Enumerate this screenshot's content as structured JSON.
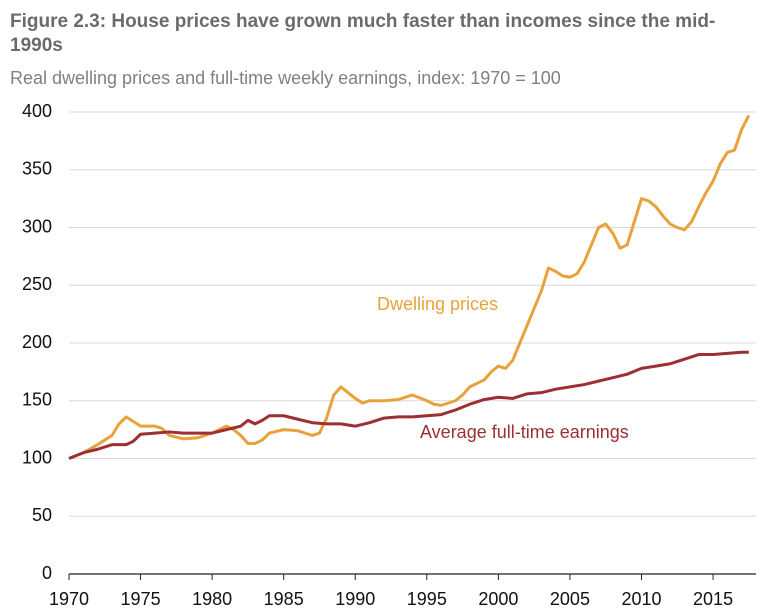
{
  "chart_data": {
    "type": "line",
    "title": "Figure 2.3: House prices have grown much faster than incomes since the mid-1990s",
    "subtitle": "Real dwelling prices and full-time weekly earnings, index: 1970 = 100",
    "xlim": [
      1970,
      2018
    ],
    "xticks": [
      1970,
      1975,
      1980,
      1985,
      1990,
      1995,
      2000,
      2005,
      2010,
      2015
    ],
    "ylim": [
      0,
      400
    ],
    "yticks": [
      0,
      50,
      100,
      150,
      200,
      250,
      300,
      350,
      400
    ],
    "grid": true,
    "series": [
      {
        "name": "Dwelling prices",
        "color": "#e9a23b",
        "x": [
          1970,
          1971,
          1972,
          1973,
          1973.5,
          1974,
          1974.5,
          1975,
          1976,
          1976.5,
          1977,
          1978,
          1979,
          1980,
          1980.5,
          1981,
          1981.5,
          1982,
          1982.5,
          1983,
          1983.5,
          1984,
          1985,
          1986,
          1987,
          1987.5,
          1988,
          1988.5,
          1989,
          1989.5,
          1990,
          1990.5,
          1991,
          1992,
          1993,
          1994,
          1995,
          1995.5,
          1996,
          1997,
          1997.5,
          1998,
          1999,
          1999.5,
          2000,
          2000.5,
          2001,
          2001.5,
          2002,
          2002.5,
          2003,
          2003.5,
          2004,
          2004.5,
          2005,
          2005.5,
          2006,
          2006.5,
          2007,
          2007.5,
          2008,
          2008.5,
          2009,
          2009.5,
          2010,
          2010.5,
          2011,
          2011.5,
          2012,
          2012.5,
          2013,
          2013.5,
          2014,
          2014.5,
          2015,
          2015.5,
          2016,
          2016.5,
          2017,
          2017.5
        ],
        "values": [
          100,
          105,
          112,
          120,
          130,
          136,
          132,
          128,
          128,
          126,
          120,
          117,
          118,
          122,
          125,
          128,
          125,
          120,
          113,
          113,
          116,
          122,
          125,
          124,
          120,
          122,
          135,
          155,
          162,
          157,
          152,
          148,
          150,
          150,
          151,
          155,
          150,
          147,
          146,
          150,
          155,
          162,
          168,
          175,
          180,
          178,
          185,
          200,
          215,
          230,
          245,
          265,
          262,
          258,
          257,
          260,
          270,
          285,
          300,
          303,
          295,
          282,
          285,
          305,
          325,
          323,
          318,
          310,
          303,
          300,
          298,
          305,
          318,
          330,
          340,
          355,
          365,
          367,
          385,
          397
        ]
      },
      {
        "name": "Average full-time earnings",
        "color": "#9c2f31",
        "x": [
          1970,
          1971,
          1972,
          1973,
          1974,
          1974.5,
          1975,
          1976,
          1977,
          1978,
          1979,
          1980,
          1981,
          1982,
          1982.5,
          1983,
          1983.5,
          1984,
          1985,
          1986,
          1987,
          1988,
          1989,
          1990,
          1991,
          1992,
          1993,
          1994,
          1995,
          1996,
          1997,
          1998,
          1999,
          2000,
          2001,
          2002,
          2003,
          2004,
          2005,
          2006,
          2007,
          2008,
          2009,
          2010,
          2011,
          2012,
          2013,
          2014,
          2015,
          2016,
          2017,
          2017.5
        ],
        "values": [
          100,
          105,
          108,
          112,
          112,
          115,
          121,
          122,
          123,
          122,
          122,
          122,
          125,
          128,
          133,
          130,
          133,
          137,
          137,
          134,
          131,
          130,
          130,
          128,
          131,
          135,
          136,
          136,
          137,
          138,
          142,
          147,
          151,
          153,
          152,
          156,
          157,
          160,
          162,
          164,
          167,
          170,
          173,
          178,
          180,
          182,
          186,
          190,
          190,
          191,
          192,
          192
        ]
      }
    ]
  }
}
